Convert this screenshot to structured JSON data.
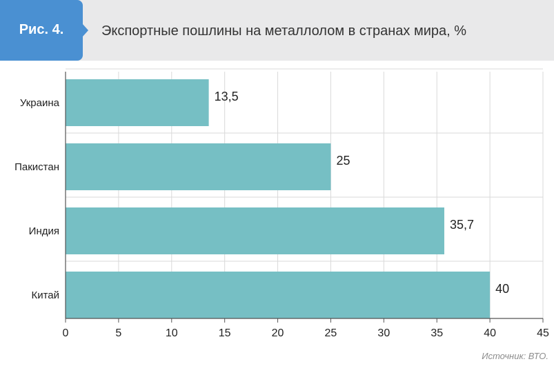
{
  "header": {
    "figure_label": "Рис. 4.",
    "title": "Экспортные пошлины на металлолом в странах мира, %"
  },
  "source": "Источник: ВТО.",
  "colors": {
    "bar": "#76bfc4",
    "badge": "#4a90d2",
    "header_bg": "#e9e9ea",
    "grid": "#d9d9d9"
  },
  "chart_data": {
    "type": "bar",
    "orientation": "horizontal",
    "categories": [
      "Украина",
      "Пакистан",
      "Индия",
      "Китай"
    ],
    "values": [
      13.5,
      25,
      35.7,
      40
    ],
    "value_labels": [
      "13,5",
      "25",
      "35,7",
      "40"
    ],
    "xlim": [
      0,
      45
    ],
    "xticks": [
      0,
      5,
      10,
      15,
      20,
      25,
      30,
      35,
      40,
      45
    ],
    "grid": true,
    "legend": "none"
  }
}
